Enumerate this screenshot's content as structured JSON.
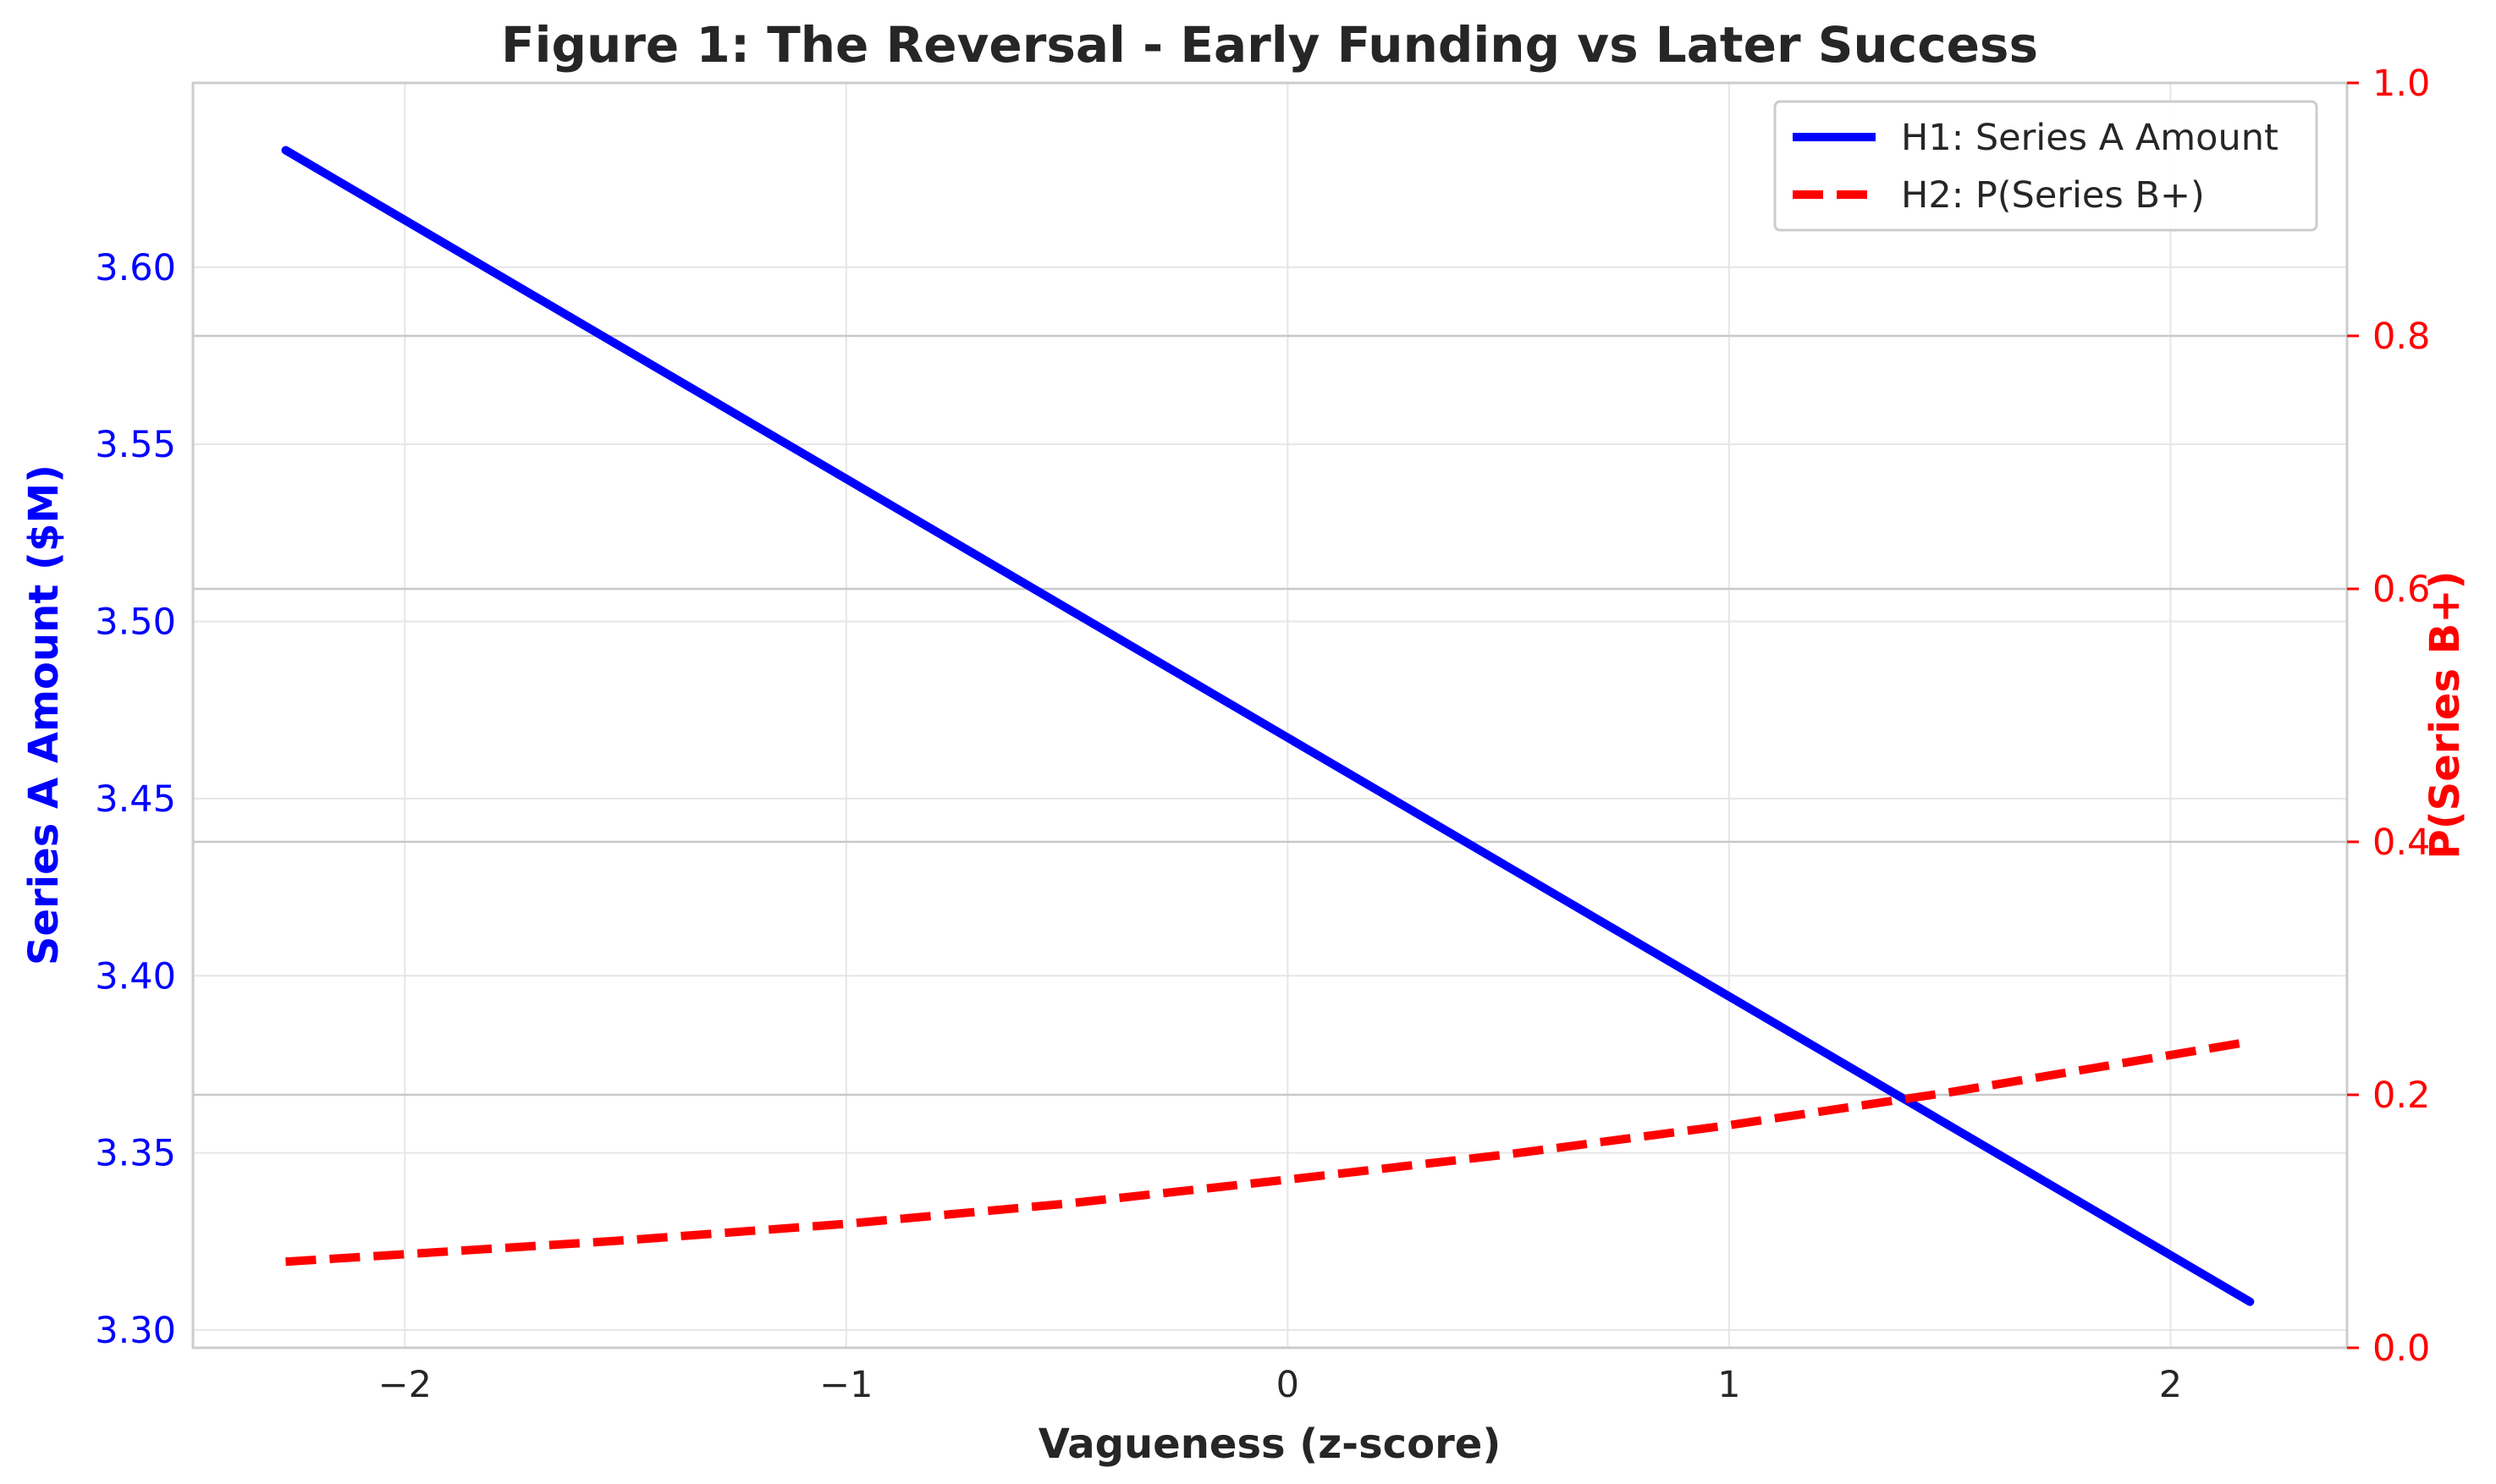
{
  "chart_data": {
    "type": "line",
    "title": "Figure 1: The Reversal - Early Funding vs Later Success",
    "xlabel": "Vagueness (z-score)",
    "ylabel_left": "Series A Amount ($M)",
    "ylabel_right": "P(Series B+)",
    "xlim": [
      -2.48,
      2.4
    ],
    "ylim_left": [
      3.295,
      3.652
    ],
    "ylim_right": [
      0.0,
      1.0
    ],
    "x_ticks": [
      -2,
      -1,
      0,
      1,
      2
    ],
    "x_tick_labels": [
      "−2",
      "−1",
      "0",
      "1",
      "2"
    ],
    "y_left_ticks": [
      3.3,
      3.35,
      3.4,
      3.45,
      3.5,
      3.55,
      3.6
    ],
    "y_left_tick_labels": [
      "3.30",
      "3.35",
      "3.40",
      "3.45",
      "3.50",
      "3.55",
      "3.60"
    ],
    "y_right_ticks": [
      0.0,
      0.2,
      0.4,
      0.6,
      0.8,
      1.0
    ],
    "y_right_tick_labels": [
      "0.0",
      "0.2",
      "0.4",
      "0.6",
      "0.8",
      "1.0"
    ],
    "grid": true,
    "legend_position": "top-right",
    "colors": {
      "h1": "#0000ff",
      "h2": "#ff0000",
      "text": "#262626",
      "grid": "#e6e6e6",
      "axis": "#cccccc"
    },
    "series": [
      {
        "name": "H1: Series A Amount",
        "axis": "left",
        "style": "solid",
        "x": [
          -2.27,
          2.18
        ],
        "y": [
          3.633,
          3.308
        ]
      },
      {
        "name": "H2: P(Series B+)",
        "axis": "right",
        "style": "dashed",
        "x": [
          -2.27,
          -1.5,
          -1.0,
          -0.5,
          0.0,
          0.5,
          1.0,
          1.5,
          2.18
        ],
        "y": [
          0.068,
          0.085,
          0.098,
          0.114,
          0.133,
          0.153,
          0.176,
          0.202,
          0.242
        ]
      }
    ]
  }
}
